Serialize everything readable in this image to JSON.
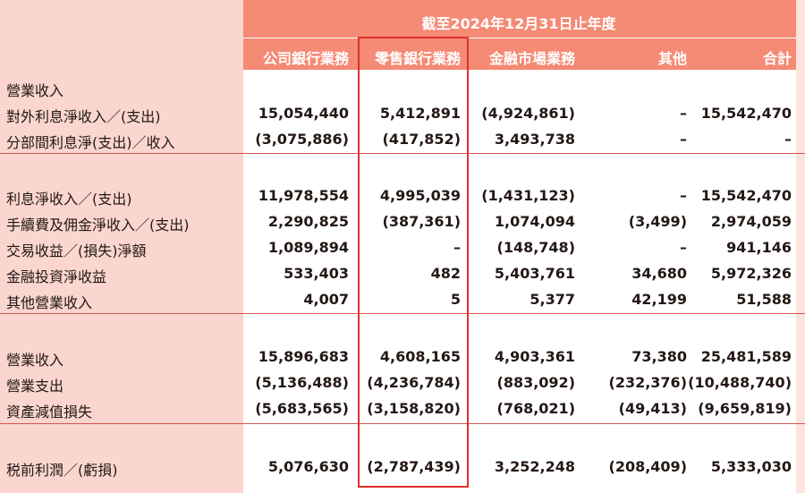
{
  "header": {
    "period": "截至2024年12月31日止年度",
    "columns": [
      "公司銀行業務",
      "零售銀行業務",
      "金融市場業務",
      "其他",
      "合計"
    ]
  },
  "section_title": "營業收入",
  "rows": [
    {
      "label": "對外利息淨收入／(支出)",
      "values": [
        "15,054,440",
        "5,412,891",
        "(4,924,861)",
        "–",
        "15,542,470"
      ]
    },
    {
      "label": "分部間利息淨(支出)／收入",
      "values": [
        "(3,075,886)",
        "(417,852)",
        "3,493,738",
        "–",
        "–"
      ]
    },
    {
      "label": "利息淨收入／(支出)",
      "values": [
        "11,978,554",
        "4,995,039",
        "(1,431,123)",
        "–",
        "15,542,470"
      ]
    },
    {
      "label": "手續費及佣金淨收入／(支出)",
      "values": [
        "2,290,825",
        "(387,361)",
        "1,074,094",
        "(3,499)",
        "2,974,059"
      ]
    },
    {
      "label": "交易收益／(損失)淨額",
      "values": [
        "1,089,894",
        "–",
        "(148,748)",
        "–",
        "941,146"
      ]
    },
    {
      "label": "金融投資淨收益",
      "values": [
        "533,403",
        "482",
        "5,403,761",
        "34,680",
        "5,972,326"
      ]
    },
    {
      "label": "其他營業收入",
      "values": [
        "4,007",
        "5",
        "5,377",
        "42,199",
        "51,588"
      ]
    },
    {
      "label": "營業收入",
      "values": [
        "15,896,683",
        "4,608,165",
        "4,903,361",
        "73,380",
        "25,481,589"
      ]
    },
    {
      "label": "營業支出",
      "values": [
        "(5,136,488)",
        "(4,236,784)",
        "(883,092)",
        "(232,376)",
        "(10,488,740)"
      ]
    },
    {
      "label": "資產減值損失",
      "values": [
        "(5,683,565)",
        "(3,158,820)",
        "(768,021)",
        "(49,413)",
        "(9,659,819)"
      ]
    },
    {
      "label": "税前利潤／(虧損)",
      "values": [
        "5,076,630",
        "(2,787,439)",
        "3,252,248",
        "(208,409)",
        "5,333,030"
      ]
    }
  ],
  "colors": {
    "header_bg": "#f58a75",
    "label_bg": "#fad6cf",
    "highlight_border": "#e0302a"
  }
}
